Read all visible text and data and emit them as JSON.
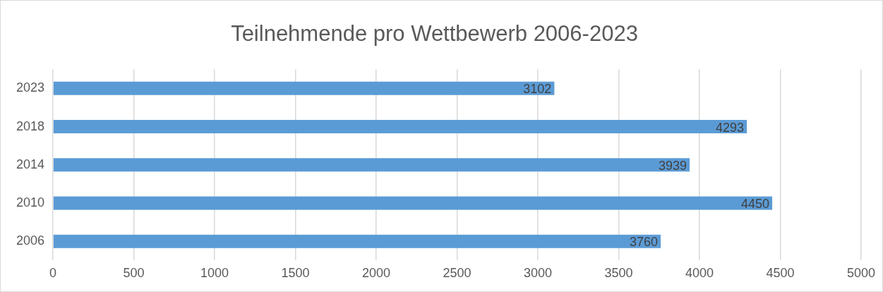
{
  "chart_data": {
    "type": "bar",
    "orientation": "horizontal",
    "title": "Teilnehmende pro Wettbewerb 2006-2023",
    "categories": [
      "2023",
      "2018",
      "2014",
      "2010",
      "2006"
    ],
    "values": [
      3102,
      4293,
      3939,
      4450,
      3760
    ],
    "color": "#5b9bd5",
    "xlim": [
      0,
      5000
    ],
    "xticks": [
      0,
      500,
      1000,
      1500,
      2000,
      2500,
      3000,
      3500,
      4000,
      4500,
      5000
    ],
    "grid": "x",
    "data_labels": true,
    "legend": false
  }
}
